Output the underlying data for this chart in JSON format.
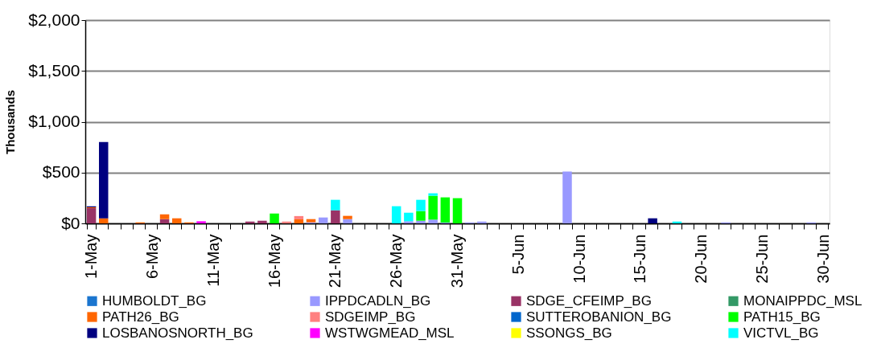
{
  "chart_data": {
    "type": "bar",
    "stacked": true,
    "ylabel": "Thousands",
    "categories": [
      "1-May",
      null,
      null,
      null,
      null,
      "6-May",
      null,
      null,
      null,
      null,
      "11-May",
      null,
      null,
      null,
      null,
      "16-May",
      null,
      null,
      null,
      null,
      "21-May",
      null,
      null,
      null,
      null,
      "26-May",
      null,
      null,
      null,
      null,
      "31-May",
      null,
      null,
      null,
      null,
      "5-Jun",
      null,
      null,
      null,
      null,
      "10-Jun",
      null,
      null,
      null,
      null,
      "15-Jun",
      null,
      null,
      null,
      null,
      "20-Jun",
      null,
      null,
      null,
      null,
      "25-Jun",
      null,
      null,
      null,
      null,
      "30-Jun"
    ],
    "series": [
      {
        "name": "HUMBOLDT_BG",
        "color": "#1a75cf",
        "values": [
          null,
          null,
          null,
          null,
          null,
          null,
          null,
          null,
          null,
          null,
          null,
          null,
          null,
          null,
          null,
          null,
          null,
          null,
          null,
          null,
          null,
          null,
          null,
          null,
          null,
          null,
          null,
          null,
          null,
          null,
          null,
          null,
          null,
          null,
          null,
          null,
          null,
          null,
          null,
          null,
          null,
          null,
          null,
          null,
          null,
          null,
          null,
          null,
          null,
          null,
          null,
          null,
          null,
          null,
          null,
          null,
          null,
          null,
          null,
          null,
          null
        ]
      },
      {
        "name": "IPPDCADLN_BG",
        "color": "#9999ff",
        "values": [
          null,
          null,
          null,
          null,
          null,
          null,
          null,
          null,
          null,
          null,
          null,
          null,
          null,
          null,
          null,
          null,
          null,
          null,
          10,
          58,
          null,
          42,
          null,
          null,
          null,
          null,
          21,
          26,
          37,
          8,
          null,
          10,
          18,
          null,
          null,
          null,
          null,
          null,
          null,
          510,
          null,
          null,
          null,
          null,
          null,
          null,
          null,
          null,
          null,
          null,
          null,
          null,
          10,
          null,
          null,
          null,
          null,
          null,
          null,
          10,
          null
        ]
      },
      {
        "name": "SDGE_CFEIMP_BG",
        "color": "#993366",
        "values": [
          150,
          null,
          null,
          null,
          null,
          null,
          42,
          null,
          null,
          null,
          null,
          null,
          null,
          18,
          26,
          null,
          null,
          null,
          null,
          null,
          129,
          null,
          null,
          null,
          null,
          null,
          null,
          null,
          null,
          null,
          null,
          null,
          null,
          null,
          null,
          null,
          null,
          null,
          null,
          null,
          null,
          null,
          null,
          null,
          null,
          null,
          null,
          null,
          null,
          null,
          null,
          null,
          null,
          null,
          null,
          null,
          null,
          null,
          null,
          null,
          null
        ]
      },
      {
        "name": "MONAIPPDC_MSL",
        "color": "#339966",
        "values": [
          null,
          null,
          null,
          null,
          null,
          null,
          null,
          null,
          null,
          null,
          null,
          null,
          null,
          null,
          null,
          null,
          null,
          null,
          null,
          null,
          null,
          null,
          null,
          null,
          null,
          null,
          null,
          null,
          null,
          null,
          null,
          null,
          null,
          null,
          null,
          null,
          null,
          null,
          null,
          null,
          null,
          null,
          null,
          null,
          null,
          null,
          null,
          null,
          null,
          null,
          null,
          null,
          null,
          null,
          null,
          null,
          null,
          null,
          null,
          null,
          null
        ]
      },
      {
        "name": "PATH26_BG",
        "color": "#ff6600",
        "values": [
          8,
          50,
          null,
          null,
          10,
          null,
          47,
          50,
          10,
          null,
          null,
          null,
          null,
          null,
          null,
          null,
          null,
          40,
          32,
          null,
          null,
          32,
          null,
          null,
          null,
          null,
          null,
          null,
          null,
          null,
          null,
          null,
          null,
          null,
          null,
          null,
          null,
          null,
          null,
          null,
          null,
          null,
          null,
          null,
          null,
          null,
          null,
          null,
          null,
          null,
          null,
          null,
          null,
          null,
          null,
          null,
          null,
          null,
          null,
          null,
          null
        ]
      },
      {
        "name": "SDGEIMP_BG",
        "color": "#ff8080",
        "values": [
          null,
          null,
          null,
          null,
          null,
          null,
          null,
          null,
          null,
          null,
          null,
          null,
          null,
          null,
          null,
          null,
          18,
          32,
          null,
          null,
          null,
          null,
          null,
          null,
          null,
          null,
          null,
          null,
          null,
          null,
          null,
          null,
          null,
          null,
          null,
          null,
          null,
          null,
          null,
          null,
          null,
          null,
          null,
          null,
          null,
          null,
          null,
          null,
          null,
          null,
          null,
          null,
          null,
          null,
          null,
          null,
          null,
          null,
          null,
          null,
          null
        ]
      },
      {
        "name": "SUTTEROBANION_BG",
        "color": "#0066cc",
        "values": [
          null,
          null,
          null,
          null,
          null,
          null,
          null,
          null,
          null,
          null,
          null,
          null,
          null,
          null,
          null,
          null,
          null,
          null,
          null,
          null,
          null,
          null,
          null,
          null,
          null,
          null,
          null,
          null,
          null,
          null,
          null,
          null,
          null,
          null,
          null,
          null,
          null,
          null,
          null,
          null,
          null,
          null,
          null,
          null,
          null,
          null,
          null,
          null,
          null,
          null,
          null,
          null,
          null,
          null,
          null,
          null,
          null,
          null,
          null,
          null,
          null
        ]
      },
      {
        "name": "PATH15_BG",
        "color": "#00ff00",
        "values": [
          null,
          null,
          null,
          null,
          null,
          null,
          null,
          null,
          null,
          null,
          null,
          null,
          null,
          null,
          null,
          97,
          null,
          null,
          null,
          null,
          null,
          null,
          null,
          null,
          null,
          null,
          null,
          95,
          235,
          248,
          248,
          null,
          null,
          null,
          null,
          null,
          null,
          null,
          null,
          null,
          null,
          null,
          null,
          null,
          null,
          null,
          null,
          null,
          null,
          null,
          null,
          null,
          null,
          null,
          null,
          null,
          null,
          null,
          null,
          null,
          null
        ]
      },
      {
        "name": "LOSBANOSNORTH_BG",
        "color": "#000080",
        "values": [
          10,
          750,
          null,
          null,
          null,
          null,
          null,
          null,
          null,
          null,
          null,
          null,
          null,
          null,
          null,
          null,
          null,
          null,
          null,
          null,
          null,
          null,
          null,
          null,
          null,
          null,
          null,
          null,
          null,
          null,
          null,
          null,
          null,
          null,
          null,
          null,
          null,
          null,
          null,
          null,
          null,
          null,
          null,
          null,
          null,
          null,
          50,
          null,
          null,
          null,
          null,
          null,
          null,
          null,
          null,
          null,
          null,
          null,
          null,
          null,
          null
        ]
      },
      {
        "name": "WSTWGMEAD_MSL",
        "color": "#ff00ff",
        "values": [
          null,
          null,
          null,
          null,
          null,
          null,
          null,
          null,
          null,
          21,
          null,
          null,
          null,
          null,
          null,
          null,
          null,
          null,
          null,
          null,
          null,
          null,
          null,
          null,
          null,
          null,
          null,
          null,
          null,
          null,
          null,
          null,
          null,
          null,
          null,
          null,
          null,
          null,
          null,
          null,
          null,
          null,
          null,
          null,
          null,
          null,
          null,
          null,
          null,
          null,
          null,
          null,
          null,
          null,
          null,
          null,
          null,
          null,
          null,
          null,
          null
        ]
      },
      {
        "name": "SSONGS_BG",
        "color": "#ffff00",
        "values": [
          null,
          null,
          null,
          null,
          null,
          null,
          null,
          null,
          null,
          null,
          null,
          null,
          null,
          null,
          null,
          null,
          null,
          null,
          null,
          null,
          null,
          null,
          null,
          null,
          null,
          null,
          null,
          null,
          null,
          null,
          null,
          null,
          null,
          null,
          null,
          null,
          null,
          null,
          null,
          null,
          null,
          null,
          null,
          null,
          null,
          null,
          null,
          null,
          null,
          null,
          null,
          null,
          null,
          null,
          null,
          null,
          null,
          null,
          null,
          null,
          null
        ]
      },
      {
        "name": "VICTVL_BG",
        "color": "#00ffff",
        "values": [
          null,
          null,
          null,
          null,
          null,
          null,
          null,
          null,
          null,
          null,
          null,
          null,
          null,
          null,
          null,
          null,
          null,
          null,
          null,
          null,
          103,
          null,
          null,
          null,
          null,
          169,
          84,
          111,
          24,
          null,
          null,
          null,
          null,
          null,
          null,
          null,
          null,
          null,
          null,
          null,
          null,
          null,
          null,
          null,
          null,
          null,
          null,
          null,
          18,
          null,
          null,
          null,
          null,
          null,
          null,
          null,
          null,
          null,
          null,
          null,
          null
        ]
      }
    ],
    "ylim": [
      0,
      2000
    ],
    "yticks": [
      {
        "value": 0,
        "label": "$0"
      },
      {
        "value": 500,
        "label": "$500"
      },
      {
        "value": 1000,
        "label": "$1,000"
      },
      {
        "value": 1500,
        "label": "$1,500"
      },
      {
        "value": 2000,
        "label": "$2,000"
      }
    ],
    "grid": "y",
    "legend": "bottom"
  }
}
